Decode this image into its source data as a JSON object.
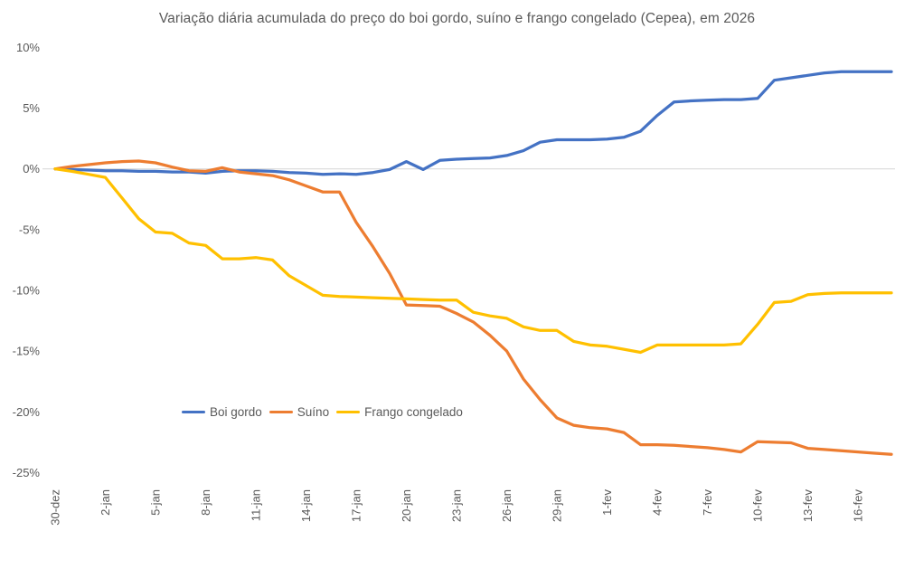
{
  "chart_data": {
    "type": "line",
    "title": "Variação diária acumulada do preço do boi gordo, suíno e frango congelado (Cepea), em 2026",
    "x_tick_labels": [
      "30-dez",
      "2-jan",
      "5-jan",
      "8-jan",
      "11-jan",
      "14-jan",
      "17-jan",
      "20-jan",
      "23-jan",
      "26-jan",
      "29-jan",
      "1-fev",
      "4-fev",
      "7-fev",
      "10-fev",
      "13-fev",
      "16-fev"
    ],
    "x_tick_every": 3,
    "dates": [
      "30-dez",
      "31-dez",
      "1-jan",
      "2-jan",
      "3-jan",
      "4-jan",
      "5-jan",
      "6-jan",
      "7-jan",
      "8-jan",
      "9-jan",
      "10-jan",
      "11-jan",
      "12-jan",
      "13-jan",
      "14-jan",
      "15-jan",
      "16-jan",
      "17-jan",
      "18-jan",
      "19-jan",
      "20-jan",
      "21-jan",
      "22-jan",
      "23-jan",
      "24-jan",
      "25-jan",
      "26-jan",
      "27-jan",
      "28-jan",
      "29-jan",
      "30-jan",
      "31-jan",
      "1-fev",
      "2-fev",
      "3-fev",
      "4-fev",
      "5-fev",
      "6-fev",
      "7-fev",
      "8-fev",
      "9-fev",
      "10-fev",
      "11-fev",
      "12-fev",
      "13-fev",
      "14-fev",
      "15-fev",
      "16-fev",
      "17-fev",
      "18-fev"
    ],
    "y_axis": {
      "min": -25,
      "max": 10,
      "step": 5,
      "unit": "%",
      "tick_labels": [
        "10%",
        "5%",
        "0%",
        "-5%",
        "-10%",
        "-15%",
        "-20%",
        "-25%"
      ]
    },
    "gridlines": "horizontal line at 0% only",
    "legend_position": "inside bottom-left",
    "series": [
      {
        "name": "Boi gordo",
        "color": "#4472C4",
        "values": [
          0,
          -0.05,
          -0.1,
          -0.15,
          -0.15,
          -0.2,
          -0.2,
          -0.25,
          -0.25,
          -0.35,
          -0.2,
          -0.15,
          -0.15,
          -0.2,
          -0.3,
          -0.35,
          -0.45,
          -0.4,
          -0.45,
          -0.3,
          -0.05,
          0.6,
          -0.05,
          0.7,
          0.8,
          0.85,
          0.9,
          1.1,
          1.5,
          2.2,
          2.4,
          2.4,
          2.4,
          2.45,
          2.6,
          3.1,
          4.4,
          5.5,
          5.6,
          5.65,
          5.7,
          5.7,
          5.8,
          7.3,
          7.5,
          7.7,
          7.9,
          8,
          8,
          8,
          8
        ]
      },
      {
        "name": "Suíno",
        "color": "#ED7D31",
        "values": [
          0,
          0.2,
          0.35,
          0.5,
          0.6,
          0.65,
          0.5,
          0.15,
          -0.15,
          -0.2,
          0.1,
          -0.25,
          -0.4,
          -0.55,
          -0.9,
          -1.4,
          -1.9,
          -1.9,
          -4.4,
          -6.4,
          -8.6,
          -11.2,
          -11.25,
          -11.3,
          -11.9,
          -12.6,
          -13.7,
          -15,
          -17.3,
          -19,
          -20.5,
          -21.1,
          -21.3,
          -21.4,
          -21.7,
          -22.7,
          -22.7,
          -22.75,
          -22.85,
          -22.95,
          -23.1,
          -23.3,
          -22.45,
          -22.5,
          -22.55,
          -23,
          -23.1,
          -23.2,
          -23.3,
          -23.4,
          -23.5
        ]
      },
      {
        "name": "Frango congelado",
        "color": "#FFC000",
        "values": [
          0,
          -0.2,
          -0.45,
          -0.7,
          -2.4,
          -4.1,
          -5.2,
          -5.3,
          -6.1,
          -6.3,
          -7.4,
          -7.4,
          -7.3,
          -7.5,
          -8.8,
          -9.6,
          -10.4,
          -10.5,
          -10.55,
          -10.6,
          -10.65,
          -10.7,
          -10.75,
          -10.8,
          -10.8,
          -11.8,
          -12.1,
          -12.3,
          -13,
          -13.3,
          -13.3,
          -14.2,
          -14.5,
          -14.6,
          -14.85,
          -15.1,
          -14.5,
          -14.5,
          -14.5,
          -14.5,
          -14.5,
          -14.4,
          -12.8,
          -11,
          -10.9,
          -10.35,
          -10.25,
          -10.2,
          -10.2,
          -10.2,
          -10.2
        ]
      }
    ],
    "colors": {
      "grid": "#D9D9D9",
      "text": "#595959"
    }
  }
}
